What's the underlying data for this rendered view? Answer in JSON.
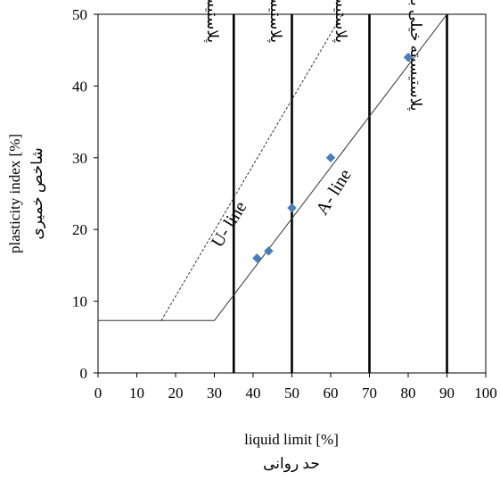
{
  "chart_data": {
    "type": "scatter",
    "xlabel": "liquid limit [%]",
    "xlabel_fa": "حد روانی",
    "ylabel": "plasticity index [%]",
    "ylabel_fa": "شاخص خمیری",
    "xlim": [
      0,
      100
    ],
    "ylim": [
      0,
      50
    ],
    "xticks": [
      0,
      10,
      20,
      30,
      40,
      50,
      60,
      70,
      80,
      90,
      100
    ],
    "yticks": [
      0,
      10,
      20,
      30,
      40,
      50
    ],
    "grid": false,
    "points": [
      {
        "x": 41,
        "y": 16
      },
      {
        "x": 44,
        "y": 17
      },
      {
        "x": 50,
        "y": 23
      },
      {
        "x": 60,
        "y": 30
      },
      {
        "x": 80,
        "y": 44
      }
    ],
    "point_color": "#4a7ebb",
    "a_line": {
      "label": "A- line",
      "points": [
        [
          0,
          7.3
        ],
        [
          30,
          7.3
        ],
        [
          90,
          50
        ]
      ]
    },
    "u_line": {
      "label": "U- line",
      "points": [
        [
          16.3,
          7.3
        ],
        [
          63,
          50
        ]
      ]
    },
    "boundaries": [
      35,
      50,
      70,
      90
    ],
    "zones": [
      {
        "label": "پلاستیسیته کم"
      },
      {
        "label": "پلاستیسیته متوسط"
      },
      {
        "label": "پلاستیسیته بالا"
      },
      {
        "label": "پلاستیسیته خیلی بالا"
      }
    ]
  }
}
